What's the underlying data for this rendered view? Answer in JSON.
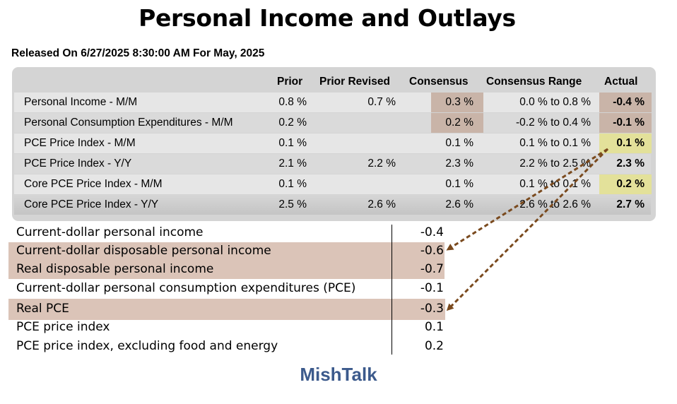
{
  "title": "Personal Income and Outlays",
  "released": "Released On 6/27/2025 8:30:00 AM For May, 2025",
  "table": {
    "headers": {
      "prior": "Prior",
      "prior_revised": "Prior Revised",
      "consensus": "Consensus",
      "consensus_range": "Consensus Range",
      "actual": "Actual"
    },
    "rows": [
      {
        "name": "Personal Income - M/M",
        "prior": "0.8 %",
        "prior_revised": "0.7 %",
        "consensus": "0.3 %",
        "range": "0.0 % to 0.8 %",
        "actual": "-0.4 %"
      },
      {
        "name": "Personal Consumption Expenditures - M/M",
        "prior": "0.2 %",
        "prior_revised": "",
        "consensus": "0.2 %",
        "range": "-0.2 % to 0.4 %",
        "actual": "-0.1 %"
      },
      {
        "name": "PCE Price Index - M/M",
        "prior": "0.1 %",
        "prior_revised": "",
        "consensus": "0.1 %",
        "range": "0.1 % to 0.1 %",
        "actual": "0.1 %"
      },
      {
        "name": "PCE Price Index - Y/Y",
        "prior": "2.1 %",
        "prior_revised": "2.2 %",
        "consensus": "2.3 %",
        "range": "2.2 % to 2.5 %",
        "actual": "2.3 %"
      },
      {
        "name": "Core PCE Price Index - M/M",
        "prior": "0.1 %",
        "prior_revised": "",
        "consensus": "0.1 %",
        "range": "0.1 % to 0.1 %",
        "actual": "0.2 %"
      },
      {
        "name": "Core PCE Price Index - Y/Y",
        "prior": "2.5 %",
        "prior_revised": "2.6 %",
        "consensus": "2.6 %",
        "range": "2.6 % to 2.6 %",
        "actual": "2.7 %"
      }
    ]
  },
  "bea": [
    {
      "label": "Current-dollar personal income",
      "value": "-0.4"
    },
    {
      "label": "Current-dollar disposable personal income",
      "value": "-0.6"
    },
    {
      "label": "Real disposable personal income",
      "value": "-0.7"
    },
    {
      "label": "Current-dollar personal consumption expenditures (PCE)",
      "value": "-0.1"
    },
    {
      "label": "Real PCE",
      "value": "-0.3"
    },
    {
      "label": "PCE price index",
      "value": "0.1"
    },
    {
      "label": "PCE price index, excluding food and energy",
      "value": "0.2"
    }
  ],
  "footer": "MishTalk",
  "colors": {
    "highlight_brown": "#c9b4a8",
    "highlight_yellow": "#e3e19a",
    "bea_shade": "#dbc4b8",
    "arrow": "#7a4a1e",
    "footer_blue": "#3c5a8c"
  }
}
